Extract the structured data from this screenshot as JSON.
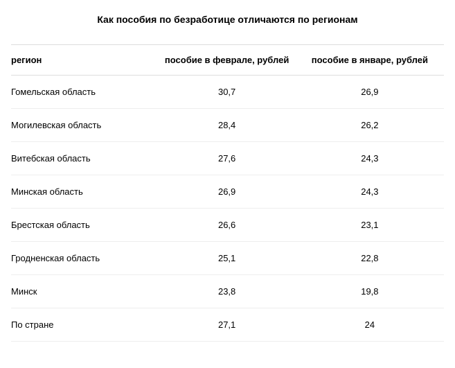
{
  "title": "Как пособия по безработице отличаются по регионам",
  "table": {
    "type": "table",
    "columns": [
      {
        "key": "region",
        "label": "регион",
        "align": "left",
        "width_pct": 34
      },
      {
        "key": "feb",
        "label": "пособие в феврале, рублей",
        "align": "center",
        "width_pct": 33
      },
      {
        "key": "jan",
        "label": "пособие в январе, рублей",
        "align": "center",
        "width_pct": 33
      }
    ],
    "rows": [
      {
        "region": "Гомельская область",
        "feb": "30,7",
        "jan": "26,9"
      },
      {
        "region": "Могилевская область",
        "feb": "28,4",
        "jan": "26,2"
      },
      {
        "region": "Витебская область",
        "feb": "27,6",
        "jan": "24,3"
      },
      {
        "region": "Минская область",
        "feb": "26,9",
        "jan": "24,3"
      },
      {
        "region": "Брестская область",
        "feb": "26,6",
        "jan": "23,1"
      },
      {
        "region": "Гродненская область",
        "feb": "25,1",
        "jan": "22,8"
      },
      {
        "region": "Минск",
        "feb": "23,8",
        "jan": "19,8"
      },
      {
        "region": "По стране",
        "feb": "27,1",
        "jan": "24"
      }
    ],
    "title_fontsize": 14,
    "cell_fontsize": 13,
    "border_color": "#dddddd",
    "row_border_color": "#eeeeee",
    "text_color": "#000000",
    "background_color": "#ffffff"
  }
}
